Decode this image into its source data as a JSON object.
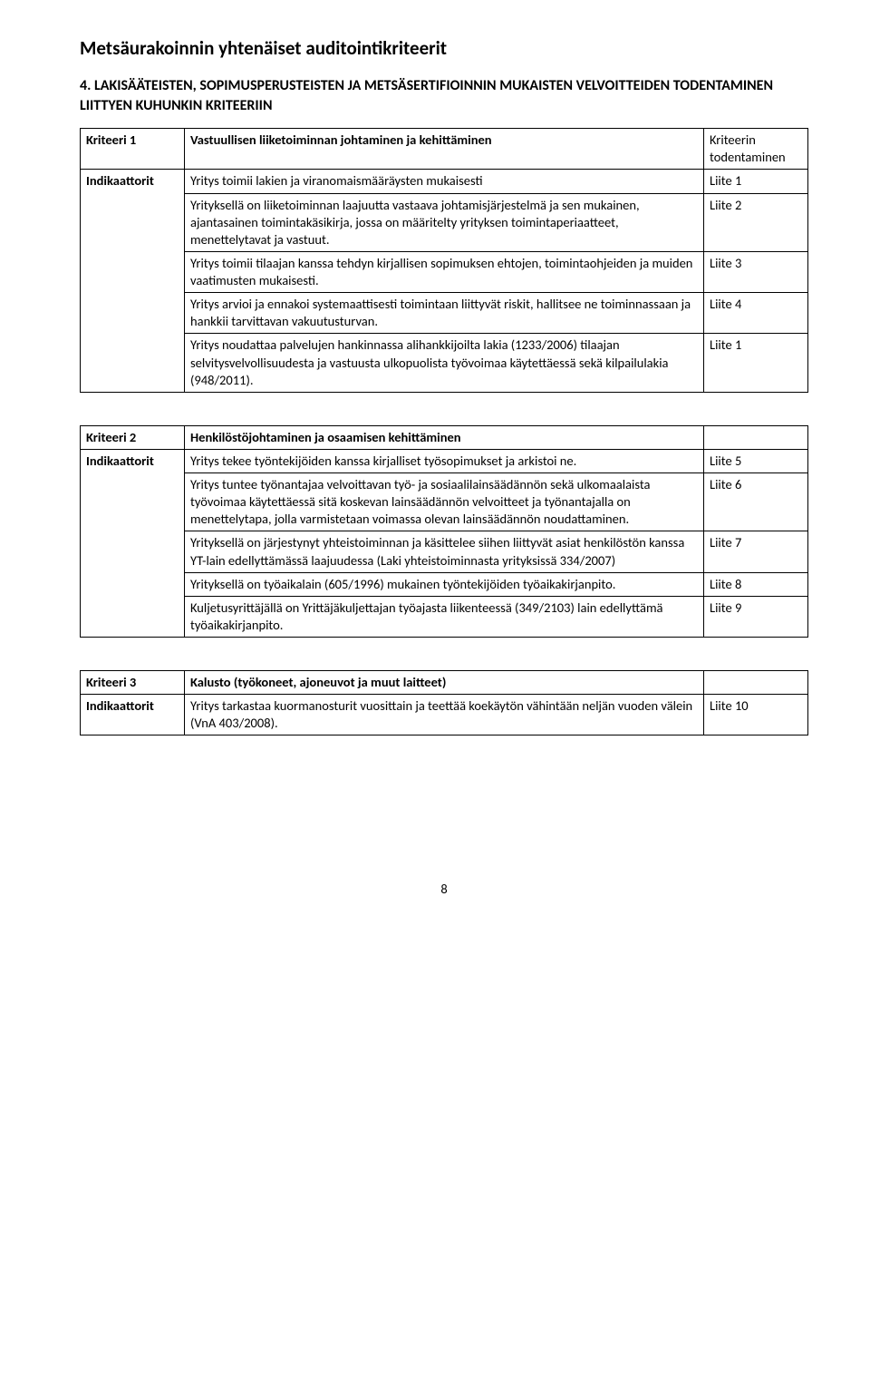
{
  "document": {
    "title": "Metsäurakoinnin yhtenäiset auditointikriteerit",
    "section_heading": "4. LAKISÄÄTEISTEN, SOPIMUSPERUSTEISTEN JA METSÄSERTIFIOINNIN MUKAISTEN VELVOITTEIDEN TODENTAMINEN LIITTYEN KUHUNKIN KRITEERIIN",
    "page_number": "8"
  },
  "labels": {
    "kriteeri": "Kriteeri",
    "indikaattorit": "Indikaattorit"
  },
  "tables": [
    {
      "kriteeri_num": "Kriteeri 1",
      "kriteeri_title": "Vastuullisen liiketoiminnan johtaminen ja kehittäminen",
      "kriteeri_ref": "Kriteerin todentaminen",
      "rows": [
        {
          "text": "Yritys toimii lakien ja viranomaismääräysten mukaisesti",
          "ref": "Liite 1"
        },
        {
          "text": "Yrityksellä on liiketoiminnan laajuutta vastaava johtamisjärjestelmä ja sen mukainen, ajantasainen toimintakäsikirja, jossa on määritelty yrityksen toimintaperiaatteet, menettelytavat ja vastuut.",
          "ref": "Liite 2"
        },
        {
          "text": "Yritys toimii tilaajan kanssa tehdyn kirjallisen sopimuksen ehtojen, toimintaohjeiden ja muiden vaatimusten mukaisesti.",
          "ref": "Liite 3"
        },
        {
          "text": "Yritys arvioi ja ennakoi systemaattisesti toimintaan liittyvät riskit, hallitsee ne toiminnassaan ja hankkii tarvittavan vakuutusturvan.",
          "ref": "Liite 4"
        },
        {
          "text": "Yritys noudattaa palvelujen hankinnassa alihankkijoilta lakia (1233/2006) tilaajan selvitysvelvollisuudesta ja vastuusta ulkopuolista työvoimaa käytettäessä sekä kilpailulakia (948/2011).",
          "ref": "Liite 1"
        }
      ]
    },
    {
      "kriteeri_num": "Kriteeri 2",
      "kriteeri_title": "Henkilöstöjohtaminen ja osaamisen kehittäminen",
      "kriteeri_ref": "",
      "rows": [
        {
          "text": "Yritys tekee työntekijöiden kanssa kirjalliset työsopimukset ja arkistoi ne.",
          "ref": "Liite 5"
        },
        {
          "text": "Yritys tuntee työnantajaa velvoittavan työ- ja sosiaalilainsäädännön sekä ulkomaalaista työvoimaa käytettäessä sitä koskevan lainsäädännön velvoitteet ja työnantajalla on menettelytapa, jolla varmistetaan voimassa olevan lainsäädännön noudattaminen.",
          "ref": "Liite 6"
        },
        {
          "text": "Yrityksellä on järjestynyt yhteistoiminnan ja käsittelee siihen liittyvät asiat henkilöstön kanssa YT-lain edellyttämässä laajuudessa (Laki yhteistoiminnasta yrityksissä 334/2007)",
          "ref": "Liite 7"
        },
        {
          "text": "Yrityksellä on työaikalain (605/1996) mukainen työntekijöiden työaikakirjanpito.",
          "ref": "Liite 8"
        },
        {
          "text": "Kuljetusyrittäjällä on Yrittäjäkuljettajan työajasta liikenteessä (349/2103) lain edellyttämä työaikakirjanpito.",
          "ref": "Liite 9"
        }
      ]
    },
    {
      "kriteeri_num": "Kriteeri 3",
      "kriteeri_title": "Kalusto (työkoneet, ajoneuvot ja muut laitteet)",
      "kriteeri_ref": "",
      "rows": [
        {
          "text": "Yritys tarkastaa kuormanosturit vuosittain ja teettää koekäytön vähintään neljän vuoden välein (VnA 403/2008).",
          "ref": "Liite 10"
        }
      ]
    }
  ]
}
